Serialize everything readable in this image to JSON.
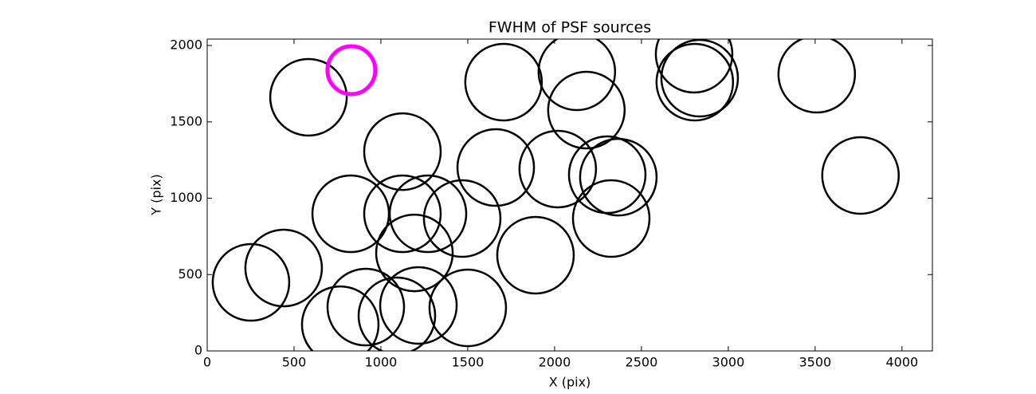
{
  "chart_data": {
    "type": "scatter",
    "title": "FWHM of PSF sources",
    "x_label": "X (pix)",
    "y_label": "Y (pix)",
    "xlim": [
      0,
      4175
    ],
    "ylim": [
      0,
      2042
    ],
    "xticks": [
      0,
      500,
      1000,
      1500,
      2000,
      2500,
      3000,
      3500,
      4000
    ],
    "yticks": [
      0,
      500,
      1000,
      1500,
      2000
    ],
    "series": [
      {
        "color": "#000000",
        "x": [
          583,
          1124,
          1706,
          2128,
          2183,
          2803,
          2835,
          2807,
          3509,
          3761,
          1661,
          2018,
          2303,
          2367,
          2326,
          826,
          1124,
          1271,
          1468,
          1193,
          1890,
          252,
          440,
          766,
          913,
          1092,
          1216,
          1500
        ],
        "y": [
          1661,
          1305,
          1760,
          1828,
          1577,
          1943,
          1786,
          1760,
          1812,
          1149,
          1201,
          1191,
          1154,
          1138,
          867,
          898,
          898,
          898,
          867,
          642,
          627,
          449,
          543,
          172,
          287,
          230,
          298,
          282
        ]
      },
      {
        "color": "#ff00ff",
        "x": [
          830
        ],
        "y": [
          1838
        ]
      }
    ]
  }
}
